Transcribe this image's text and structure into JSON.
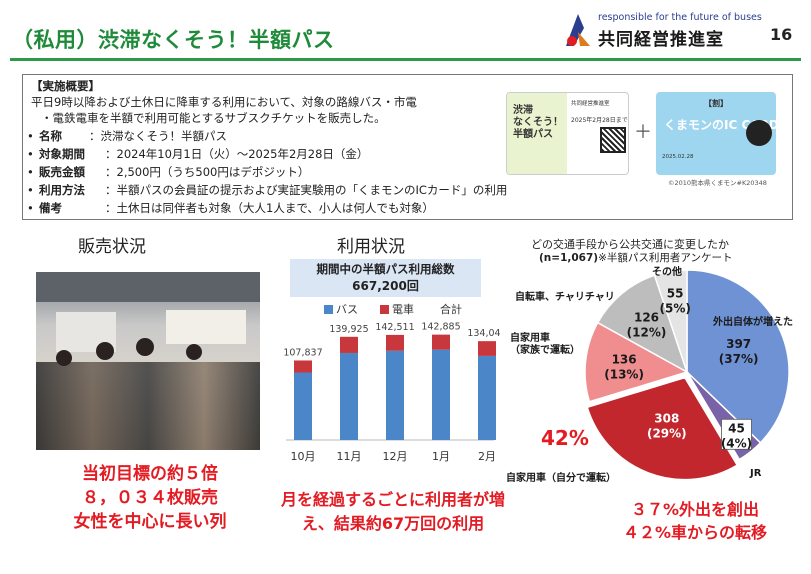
{
  "header": {
    "title": "（私用）渋滞なくそう！半額パス",
    "tagline": "responsible for the future of buses",
    "org": "共同経営推進室",
    "page_number": "16"
  },
  "overview": {
    "heading": "【実施概要】",
    "description_line1": "平日9時以降および土休日に降車する利用において、対象の路線バス・市電",
    "description_line2": "・電鉄電車を半額で利用可能とするサブスクチケットを販売した。",
    "rows": [
      {
        "bullet": "•",
        "label": "名称",
        "value": "：渋滞なくそう！半額パス"
      },
      {
        "bullet": "•",
        "label": "対象期間",
        "value": "：2024年10月1日（火）～2025年2月28日（金）"
      },
      {
        "bullet": "•",
        "label": "販売金額",
        "value": "：2,500円（うち500円はデポジット）"
      },
      {
        "bullet": "•",
        "label": "利用方法",
        "value": "：半額パスの会員証の提示および実証実験用の「くまモンのICカード」の利用"
      },
      {
        "bullet": "•",
        "label": "備考",
        "value": "：土休日は同伴者も対象（大人1人まで、小人は何人でも対象）"
      }
    ],
    "ticket_title": "渋滞\nなくそう！\n半額パス",
    "ticket_expiry": "2025年2月28日まで",
    "plus": "＋",
    "card_tag": "【割】",
    "card_name": "くまモンのIC CARD",
    "card_footer": "2025.02.28",
    "copyright": "©2010熊本県くまモン#K20348"
  },
  "sales": {
    "heading": "販売状況",
    "caption_lines": [
      "当初目標の約５倍",
      "８，０３４枚販売",
      "女性を中心に長い列"
    ]
  },
  "usage": {
    "heading": "利用状況",
    "total_label": "期間中の半額パス利用総数",
    "total_value": "667,200回",
    "caption_lines": [
      "月を経過するごとに利用者が増",
      "え、結果約67万回の利用"
    ]
  },
  "colors": {
    "title_green": "#1e8a3a",
    "bus_blue": "#4a86c8",
    "train_red": "#c8373c",
    "caption_red": "#e31b23"
  },
  "chart_data": [
    {
      "type": "bar",
      "stacked": true,
      "categories": [
        "10月",
        "11月",
        "12月",
        "1月",
        "2月"
      ],
      "series": [
        {
          "name": "バス",
          "values": [
            91500,
            118000,
            121000,
            122500,
            114000
          ]
        },
        {
          "name": "電車",
          "values": [
            16337,
            21925,
            21511,
            20385,
            20042
          ]
        }
      ],
      "totals_label": "合計",
      "totals": [
        107837,
        139925,
        142511,
        142885,
        134042
      ],
      "total_labels": [
        "107,837",
        "139,925",
        "142,511",
        "142,885",
        "134,042"
      ],
      "ylim": [
        0,
        160000
      ],
      "legend": "top"
    },
    {
      "type": "pie",
      "title": "どの交通手段から公共交通に変更したか",
      "n_label": "(n=1,067)",
      "note": "※半額パス利用者アンケート",
      "slices": [
        {
          "label": "外出自体が増えた",
          "value": 397,
          "value_label": "397",
          "pct": "(37%)",
          "color": "#6e92d4"
        },
        {
          "label": "JR",
          "value": 45,
          "value_label": "45",
          "pct": "(4%)",
          "color": "#7a62a8"
        },
        {
          "label": "自家用車（自分で運転）",
          "value": 308,
          "value_label": "308",
          "pct": "(29%)",
          "color": "#c1272d"
        },
        {
          "label": "自家用車（家族で運転）",
          "value": 136,
          "value_label": "136",
          "pct": "(13%)",
          "color": "#f08d8f"
        },
        {
          "label": "自転車、チャリチャリ",
          "value": 126,
          "value_label": "126",
          "pct": "(12%)",
          "color": "#bdbdbd"
        },
        {
          "label": "その他",
          "value": 55,
          "value_label": "55",
          "pct": "(5%)",
          "color": "#e4e4e4"
        }
      ],
      "car_total_label": "42%"
    }
  ],
  "survey": {
    "caption_lines": [
      "３７%外出を創出",
      "４２%車からの転移"
    ]
  }
}
